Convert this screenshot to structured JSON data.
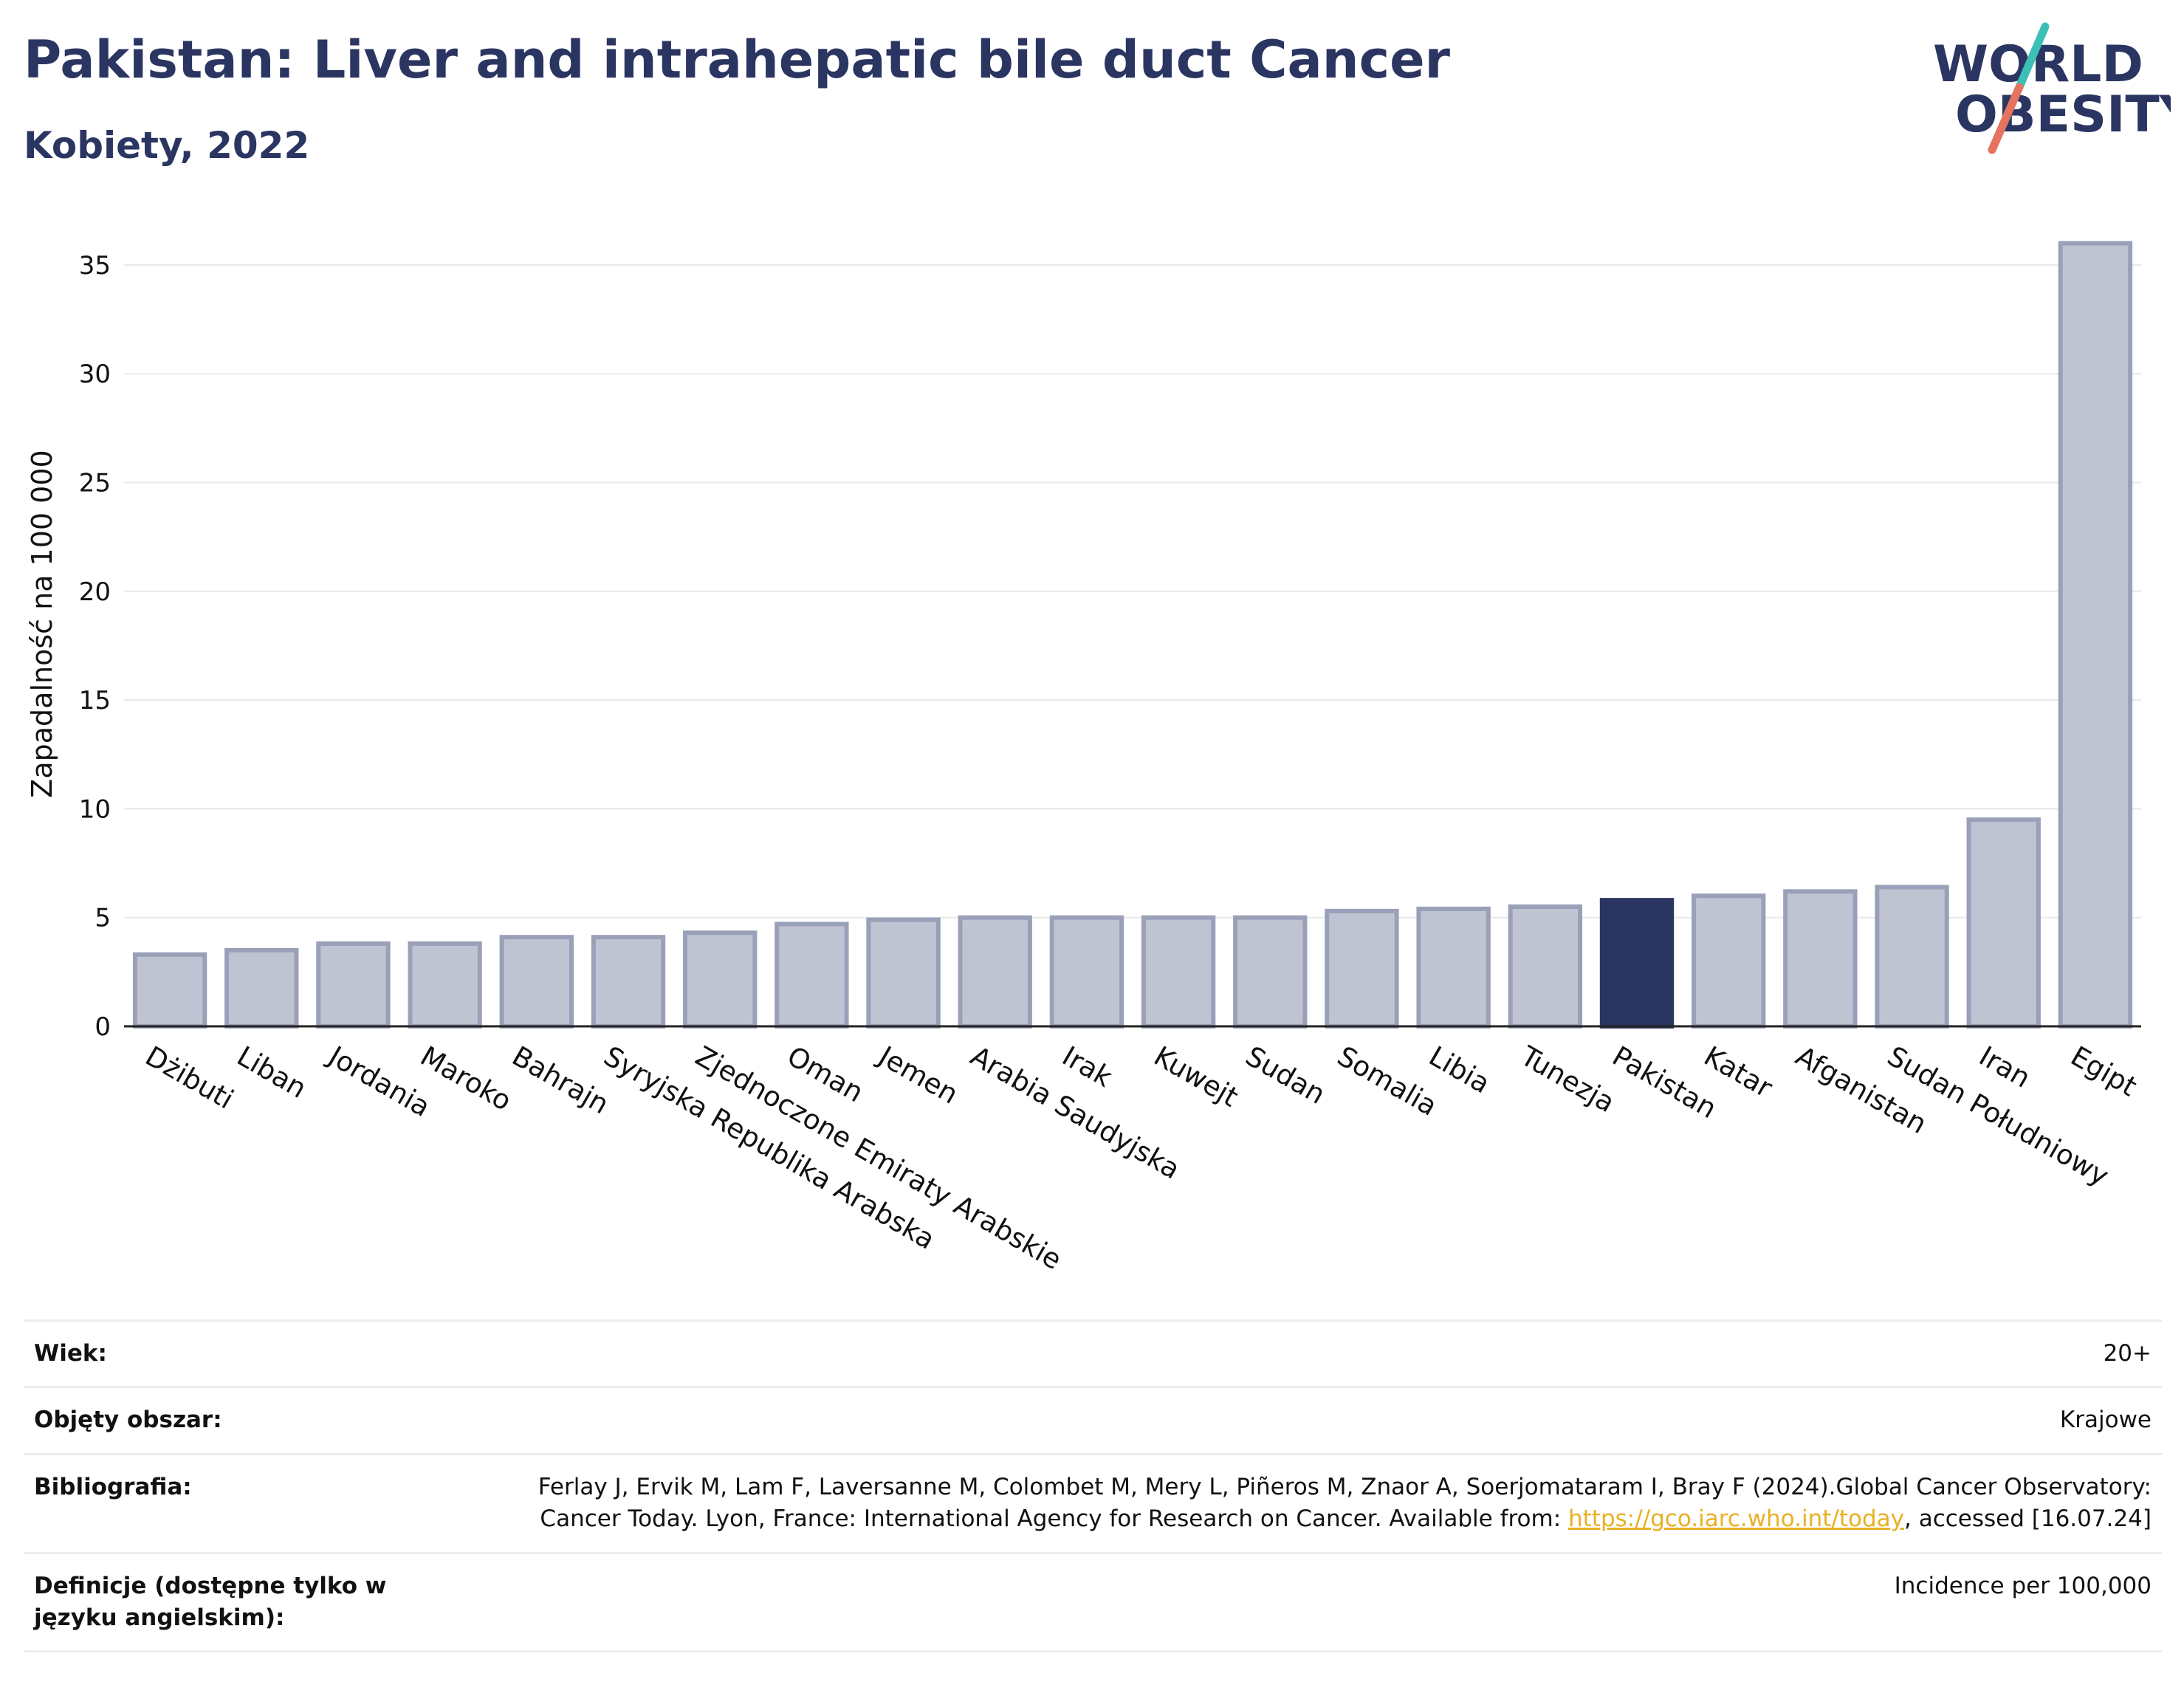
{
  "header": {
    "title": "Pakistan: Liver and intrahepatic bile duct Cancer",
    "subtitle": "Kobiety, 2022"
  },
  "logo": {
    "line1": "WORLD",
    "line2": "OBESITY",
    "colors": {
      "text": "#2b3561",
      "slash_top": "#3bbfb6",
      "slash_bottom": "#e4735f"
    }
  },
  "colors": {
    "bar_default": "#c0c4d2",
    "bar_default_border": "#9aa0b8",
    "bar_highlight": "#2b3561",
    "grid": "#e8e8e8",
    "axis": "#222222"
  },
  "chart_data": {
    "type": "bar",
    "ylabel": "Zapadalność na 100 000",
    "ylim": [
      0,
      37
    ],
    "yticks": [
      0,
      5,
      10,
      15,
      20,
      25,
      30,
      35
    ],
    "grid": true,
    "highlight": "Pakistan",
    "categories": [
      "Dżibuti",
      "Liban",
      "Jordania",
      "Maroko",
      "Bahrajn",
      "Syryjska Republika Arabska",
      "Zjednoczone Emiraty Arabskie",
      "Oman",
      "Jemen",
      "Arabia Saudyjska",
      "Irak",
      "Kuwejt",
      "Sudan",
      "Somalia",
      "Libia",
      "Tunezja",
      "Pakistan",
      "Katar",
      "Afganistan",
      "Sudan Południowy",
      "Iran",
      "Egipt"
    ],
    "values": [
      3.3,
      3.5,
      3.8,
      3.8,
      4.1,
      4.1,
      4.3,
      4.7,
      4.9,
      5.0,
      5.0,
      5.0,
      5.0,
      5.3,
      5.4,
      5.5,
      5.8,
      6.0,
      6.2,
      6.4,
      9.5,
      36.0
    ]
  },
  "meta": [
    {
      "key": "Wiek:",
      "value": "20+"
    },
    {
      "key": "Objęty obszar:",
      "value": "Krajowe"
    },
    {
      "key": "Bibliografia:",
      "value_pre": "Ferlay J, Ervik M, Lam F, Laversanne M, Colombet M, Mery L, Piñeros M, Znaor A, Soerjomataram I, Bray F (2024).Global Cancer Observatory: Cancer Today. Lyon, France: International Agency for Research on Cancer. Available from: ",
      "link": "https://gco.iarc.who.int/today",
      "value_post": ", accessed [16.07.24]"
    },
    {
      "key": "Definicje (dostępne tylko w języku angielskim):",
      "value": "Incidence per 100,000"
    }
  ]
}
